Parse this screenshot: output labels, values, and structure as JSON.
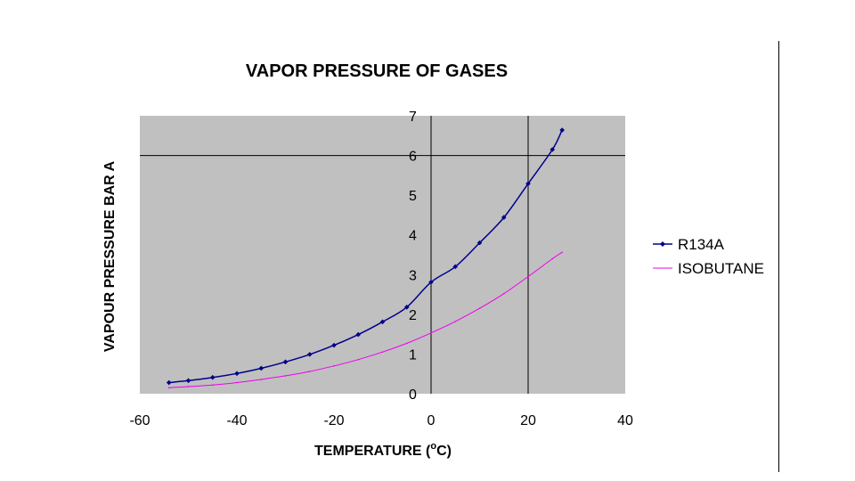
{
  "chart_data": {
    "type": "line",
    "title": "VAPOR PRESSURE OF GASES",
    "xlabel_main": "TEMPERATURE (",
    "xlabel_sup": "o",
    "xlabel_end": "C)",
    "ylabel": "VAPOUR PRESSURE  BAR A",
    "xlim": [
      -60,
      40
    ],
    "ylim": [
      0,
      7
    ],
    "xticks": [
      -60,
      -40,
      -20,
      0,
      20,
      40
    ],
    "yticks": [
      0,
      1,
      2,
      3,
      4,
      5,
      6,
      7
    ],
    "grid": false,
    "reference_lines": {
      "x": [
        0,
        20
      ],
      "y": [
        6
      ]
    },
    "legend_position": "right",
    "colors": {
      "plot_bg": "#c0c0c0",
      "r134a": "#00008b",
      "isobutane": "#ee00ee"
    },
    "series": [
      {
        "name": "R134A",
        "marker": "diamond",
        "x": [
          -54,
          -50,
          -45,
          -40,
          -35,
          -30,
          -25,
          -20,
          -15,
          -10,
          -5,
          0,
          5,
          10,
          15,
          20,
          25,
          27
        ],
        "y": [
          0.28,
          0.33,
          0.41,
          0.51,
          0.64,
          0.8,
          0.99,
          1.22,
          1.49,
          1.81,
          2.18,
          2.81,
          3.2,
          3.8,
          4.44,
          5.29,
          6.15,
          6.64
        ]
      },
      {
        "name": "ISOBUTANE",
        "marker": "none",
        "x": [
          -54,
          -50,
          -45,
          -40,
          -35,
          -30,
          -25,
          -20,
          -15,
          -10,
          -5,
          0,
          5,
          10,
          15,
          20,
          25,
          27
        ],
        "y": [
          0.15,
          0.18,
          0.22,
          0.28,
          0.36,
          0.45,
          0.56,
          0.7,
          0.86,
          1.05,
          1.27,
          1.53,
          1.82,
          2.15,
          2.52,
          2.95,
          3.4,
          3.56
        ]
      }
    ]
  }
}
